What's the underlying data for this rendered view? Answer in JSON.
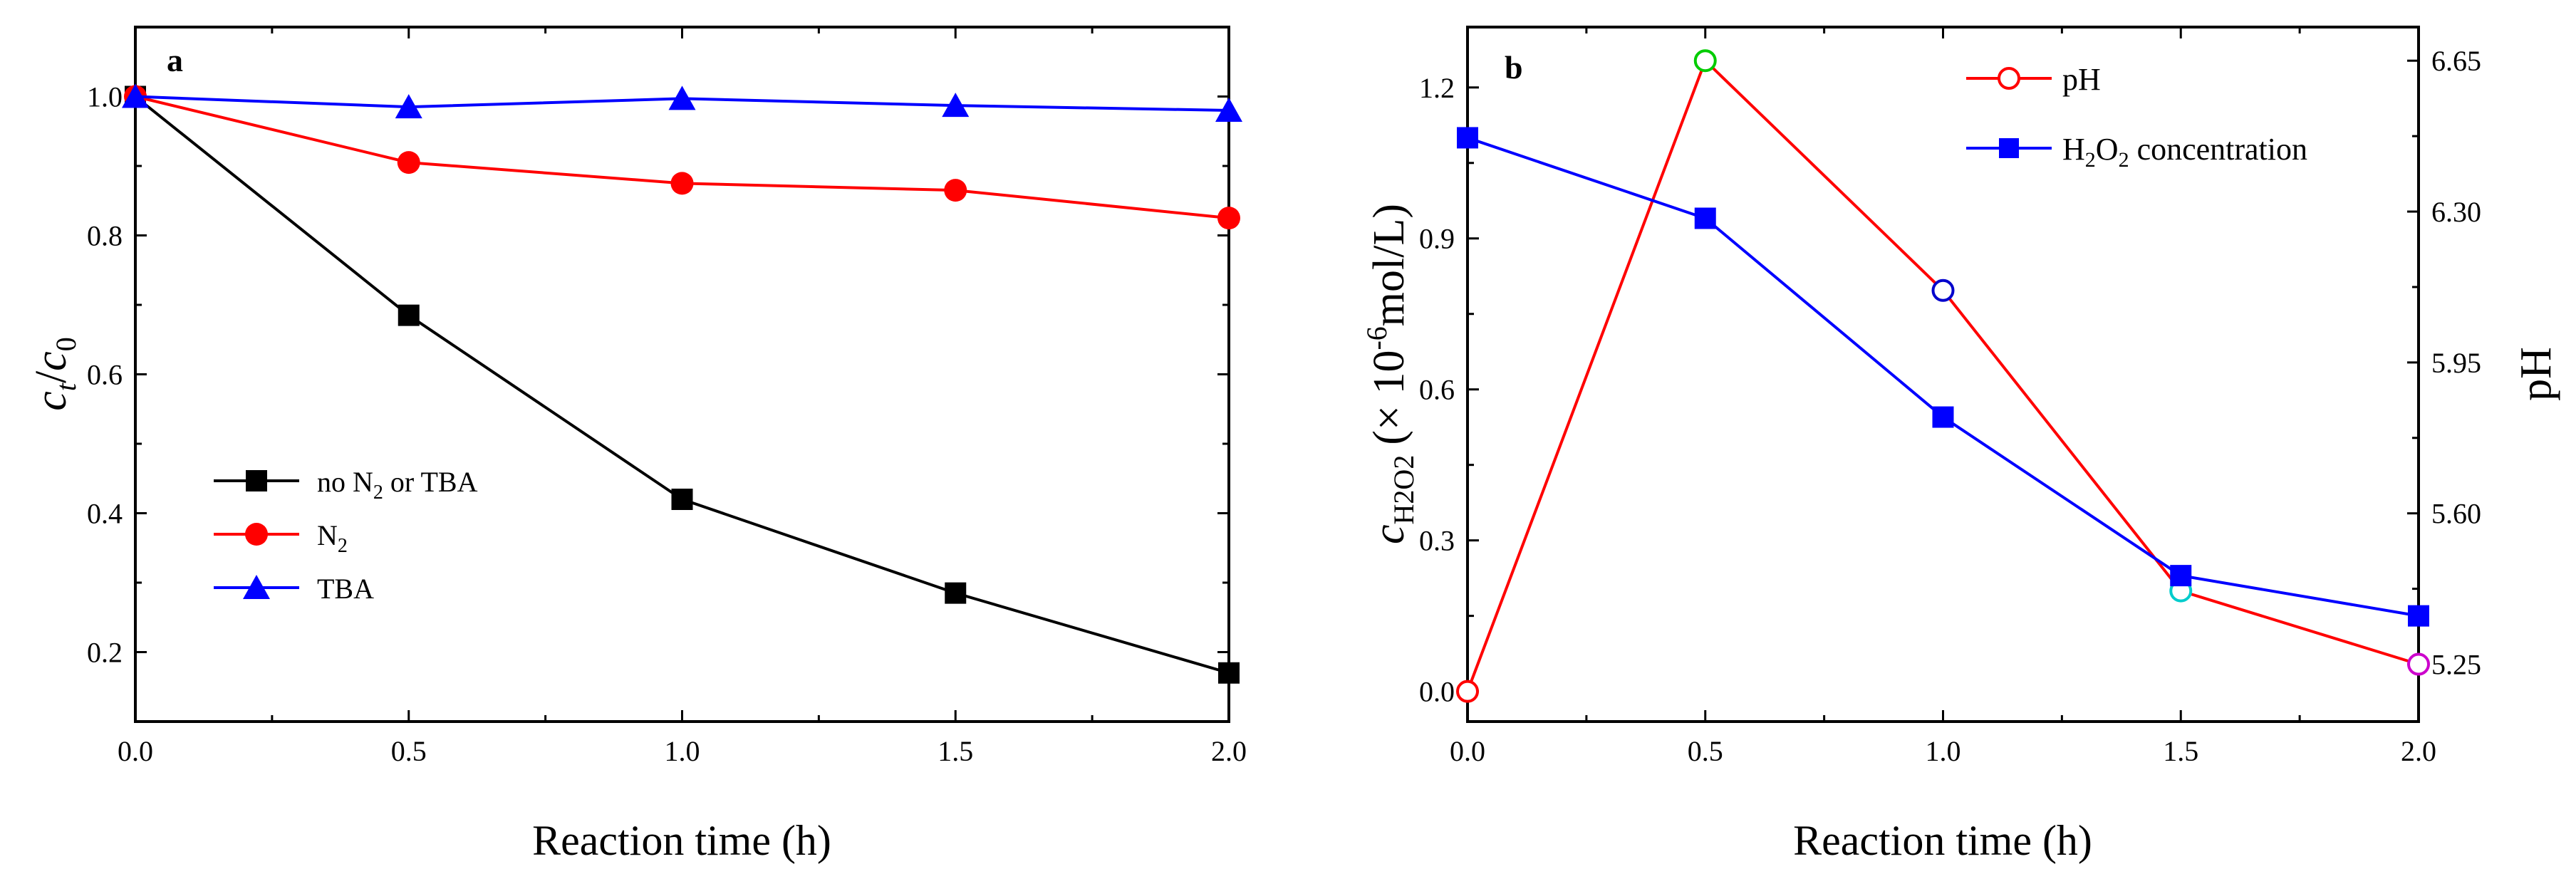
{
  "chart_data": [
    {
      "type": "line",
      "panel": "a",
      "xlabel": "Reaction time (h)",
      "ylabel": "c_t/c_0",
      "ylabel_main": "c",
      "ylabel_sub_t": "t",
      "ylabel_slash": "/",
      "ylabel_sub_0": "0",
      "xlim": [
        0,
        2
      ],
      "ylim": [
        0.1,
        1.1
      ],
      "x_ticks": [
        "0.0",
        "0.5",
        "1.0",
        "1.5",
        "2.0"
      ],
      "y_ticks": [
        "0.2",
        "0.4",
        "0.6",
        "0.8",
        "1.0"
      ],
      "legend_position": "lower-left",
      "series": [
        {
          "name": "no N2 or TBA",
          "label_parts": [
            "no N",
            "2",
            " or TBA"
          ],
          "color": "#000000",
          "marker": "square",
          "x": [
            0,
            0.5,
            1.0,
            1.5,
            2.0
          ],
          "values": [
            1.0,
            0.685,
            0.42,
            0.285,
            0.17
          ]
        },
        {
          "name": "N2",
          "label_parts": [
            "N",
            "2",
            ""
          ],
          "color": "#ff0000",
          "marker": "circle",
          "x": [
            0,
            0.5,
            1.0,
            1.5,
            2.0
          ],
          "values": [
            1.0,
            0.905,
            0.875,
            0.865,
            0.825
          ]
        },
        {
          "name": "TBA",
          "label_parts": [
            "TBA",
            "",
            ""
          ],
          "color": "#0000ff",
          "marker": "triangle",
          "x": [
            0,
            0.5,
            1.0,
            1.5,
            2.0
          ],
          "values": [
            1.0,
            0.985,
            0.997,
            0.987,
            0.98
          ]
        }
      ]
    },
    {
      "type": "line",
      "panel": "b",
      "xlabel": "Reaction time (h)",
      "ylabel_left": "c_H2O2 (×10^-6 mol/L)",
      "ylabel_left_parts": {
        "c": "c",
        "sub": "H2O2",
        "pre": "(",
        "times": "×",
        "ten": " 10",
        "exp": "-6",
        "unit": "mol/L)"
      },
      "ylabel_right": "pH",
      "xlim": [
        0,
        2
      ],
      "ylim_left": [
        -0.06,
        1.32
      ],
      "ylim_right": [
        5.117,
        6.728
      ],
      "x_ticks": [
        "0.0",
        "0.5",
        "1.0",
        "1.5",
        "2.0"
      ],
      "y_ticks_left": [
        "0.0",
        "0.3",
        "0.6",
        "0.9",
        "1.2"
      ],
      "y_ticks_right": [
        "5.25",
        "5.60",
        "5.95",
        "6.30",
        "6.65"
      ],
      "legend_position": "top-right",
      "series": [
        {
          "name": "pH",
          "axis": "right",
          "color": "#ff0000",
          "marker": "open-circle",
          "x": [
            0,
            0.5,
            1.0,
            1.5,
            2.0
          ],
          "values": [
            5.187,
            6.65,
            6.117,
            5.42,
            5.25
          ],
          "marker_colors": [
            "#ff0000",
            "#00cc00",
            "#0000cc",
            "#00cccc",
            "#cc00cc"
          ]
        },
        {
          "name": "H2O2 concentration",
          "label_parts": [
            "H",
            "2",
            "O",
            "2",
            " concentration"
          ],
          "axis": "left",
          "color": "#0000ff",
          "marker": "square",
          "x": [
            0,
            0.5,
            1.0,
            1.5,
            2.0
          ],
          "values": [
            1.1,
            0.94,
            0.545,
            0.23,
            0.15
          ]
        }
      ]
    }
  ]
}
